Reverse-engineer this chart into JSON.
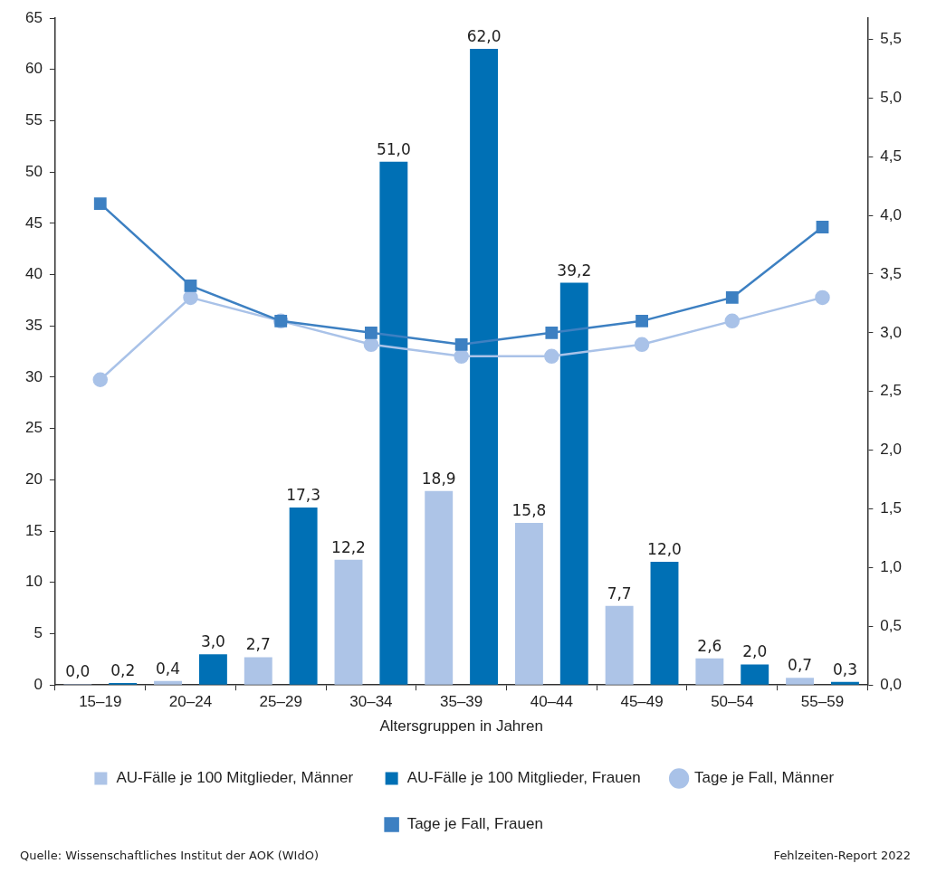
{
  "chart_data": {
    "type": "bar",
    "xlabel": "Altersgruppen in Jahren",
    "categories": [
      "15–19",
      "20–24",
      "25–29",
      "30–34",
      "35–39",
      "40–44",
      "45–49",
      "50–54",
      "55–59"
    ],
    "series": [
      {
        "name": "AU-Fälle je 100 Mitglieder, Männer",
        "color": "#adc4e7",
        "values": [
          0.0,
          0.4,
          2.7,
          12.2,
          18.9,
          15.8,
          7.7,
          2.6,
          0.7
        ],
        "value_labels": [
          "0,0",
          "0,4",
          "2,7",
          "12,2",
          "18,9",
          "15,8",
          "7,7",
          "2,6",
          "0,7"
        ]
      },
      {
        "name": "AU-Fälle je 100 Mitglieder, Frauen",
        "color": "#0070b5",
        "values": [
          0.2,
          3.0,
          17.3,
          51.0,
          62.0,
          39.2,
          12.0,
          2.0,
          0.3
        ],
        "value_labels": [
          "0,2",
          "3,0",
          "17,3",
          "51,0",
          "62,0",
          "39,2",
          "12,0",
          "2,0",
          "0,3"
        ]
      },
      {
        "name": "Tage je Fall, Männer",
        "type": "line",
        "axis": "y2",
        "marker": "circle",
        "color": "#a9c2e8",
        "values": [
          2.6,
          3.3,
          3.1,
          2.9,
          2.8,
          2.8,
          2.9,
          3.1,
          3.3
        ]
      },
      {
        "name": "Tage je Fall, Frauen",
        "type": "line",
        "axis": "y2",
        "marker": "square",
        "color": "#3d80c2",
        "values": [
          4.1,
          3.4,
          3.1,
          3.0,
          2.9,
          3.0,
          3.1,
          3.3,
          3.9
        ]
      }
    ],
    "ylim": [
      0,
      65
    ],
    "yticks": [
      0,
      5,
      10,
      15,
      20,
      25,
      30,
      35,
      40,
      45,
      50,
      55,
      60,
      65
    ],
    "y2lim": [
      0,
      5.68
    ],
    "y2ticks": [
      {
        "value": 0,
        "label": "0,0"
      },
      {
        "value": 0.5,
        "label": "0,5"
      },
      {
        "value": 1,
        "label": "1,0"
      },
      {
        "value": 1.5,
        "label": "1,5"
      },
      {
        "value": 2,
        "label": "2,0"
      },
      {
        "value": 2.5,
        "label": "2,5"
      },
      {
        "value": 3,
        "label": "3,0"
      },
      {
        "value": 3.5,
        "label": "3,5"
      },
      {
        "value": 4,
        "label": "4,0"
      },
      {
        "value": 4.5,
        "label": "4,5"
      },
      {
        "value": 5,
        "label": "5,0"
      },
      {
        "value": 5.5,
        "label": "5,5"
      }
    ],
    "legend": "bottom",
    "grid": false,
    "annotations": [
      "Quelle: Wissenschaftliches Institut der AOK (WIdO)",
      "Fehlzeiten-Report 2022"
    ]
  }
}
